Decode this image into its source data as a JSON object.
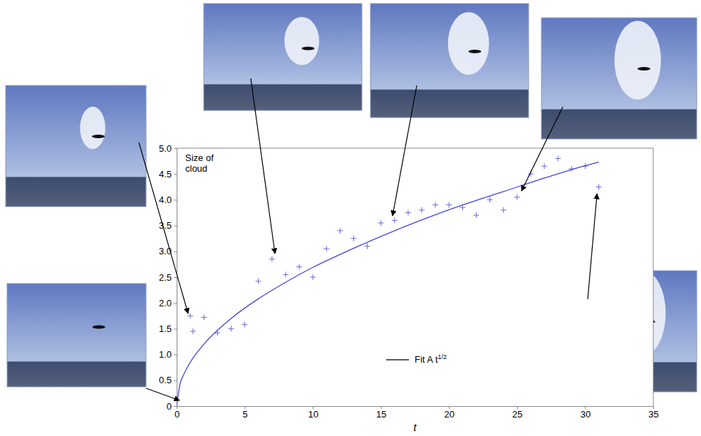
{
  "chart_data": {
    "type": "scatter",
    "y_label": "Size of cloud",
    "x_label": "t",
    "xlim": [
      0,
      35
    ],
    "xticks": [
      0,
      5,
      10,
      15,
      20,
      25,
      30,
      35
    ],
    "ylim": [
      0,
      5
    ],
    "yticks": [
      0,
      0.5,
      {
        "value": 1,
        "label": "1.0"
      },
      1.5,
      {
        "value": 2,
        "label": "2.0"
      },
      2.5,
      {
        "value": 3,
        "label": "3.0"
      },
      3.5,
      {
        "value": 4,
        "label": "4.0"
      },
      4.5,
      {
        "value": 5,
        "label": "5.0"
      }
    ],
    "grid": false,
    "legend": "lower right",
    "series": [
      {
        "type": "scatter",
        "marker": "plus",
        "color": "#6b6bd6",
        "x": [
          1,
          1.2,
          2,
          3,
          4,
          5,
          6,
          7,
          8,
          9,
          10,
          11,
          12,
          13,
          14,
          15,
          16,
          17,
          18,
          19,
          20,
          21,
          22,
          23,
          24,
          25,
          26,
          27,
          28,
          29,
          30,
          31
        ],
        "values": [
          1.75,
          1.45,
          1.72,
          1.42,
          1.5,
          1.58,
          2.42,
          2.85,
          2.55,
          2.7,
          2.5,
          3.05,
          3.4,
          3.25,
          3.1,
          3.55,
          3.6,
          3.75,
          3.8,
          3.9,
          3.9,
          3.85,
          3.7,
          4.0,
          3.8,
          4.05,
          4.5,
          4.65,
          4.8,
          4.6,
          4.65,
          4.25
        ]
      },
      {
        "name": "Fit A t1/2",
        "type": "line",
        "line_style": "solid",
        "color": "#4444dd",
        "x": [
          0,
          0.25,
          0.5,
          1,
          2,
          3,
          4,
          6,
          8,
          10,
          12,
          15,
          18,
          21,
          24,
          27,
          30,
          31
        ],
        "values": [
          0,
          0.43,
          0.6,
          0.85,
          1.2,
          1.47,
          1.7,
          2.08,
          2.4,
          2.69,
          2.94,
          3.29,
          3.61,
          3.9,
          4.16,
          4.42,
          4.66,
          4.73
        ]
      }
    ]
  }
}
